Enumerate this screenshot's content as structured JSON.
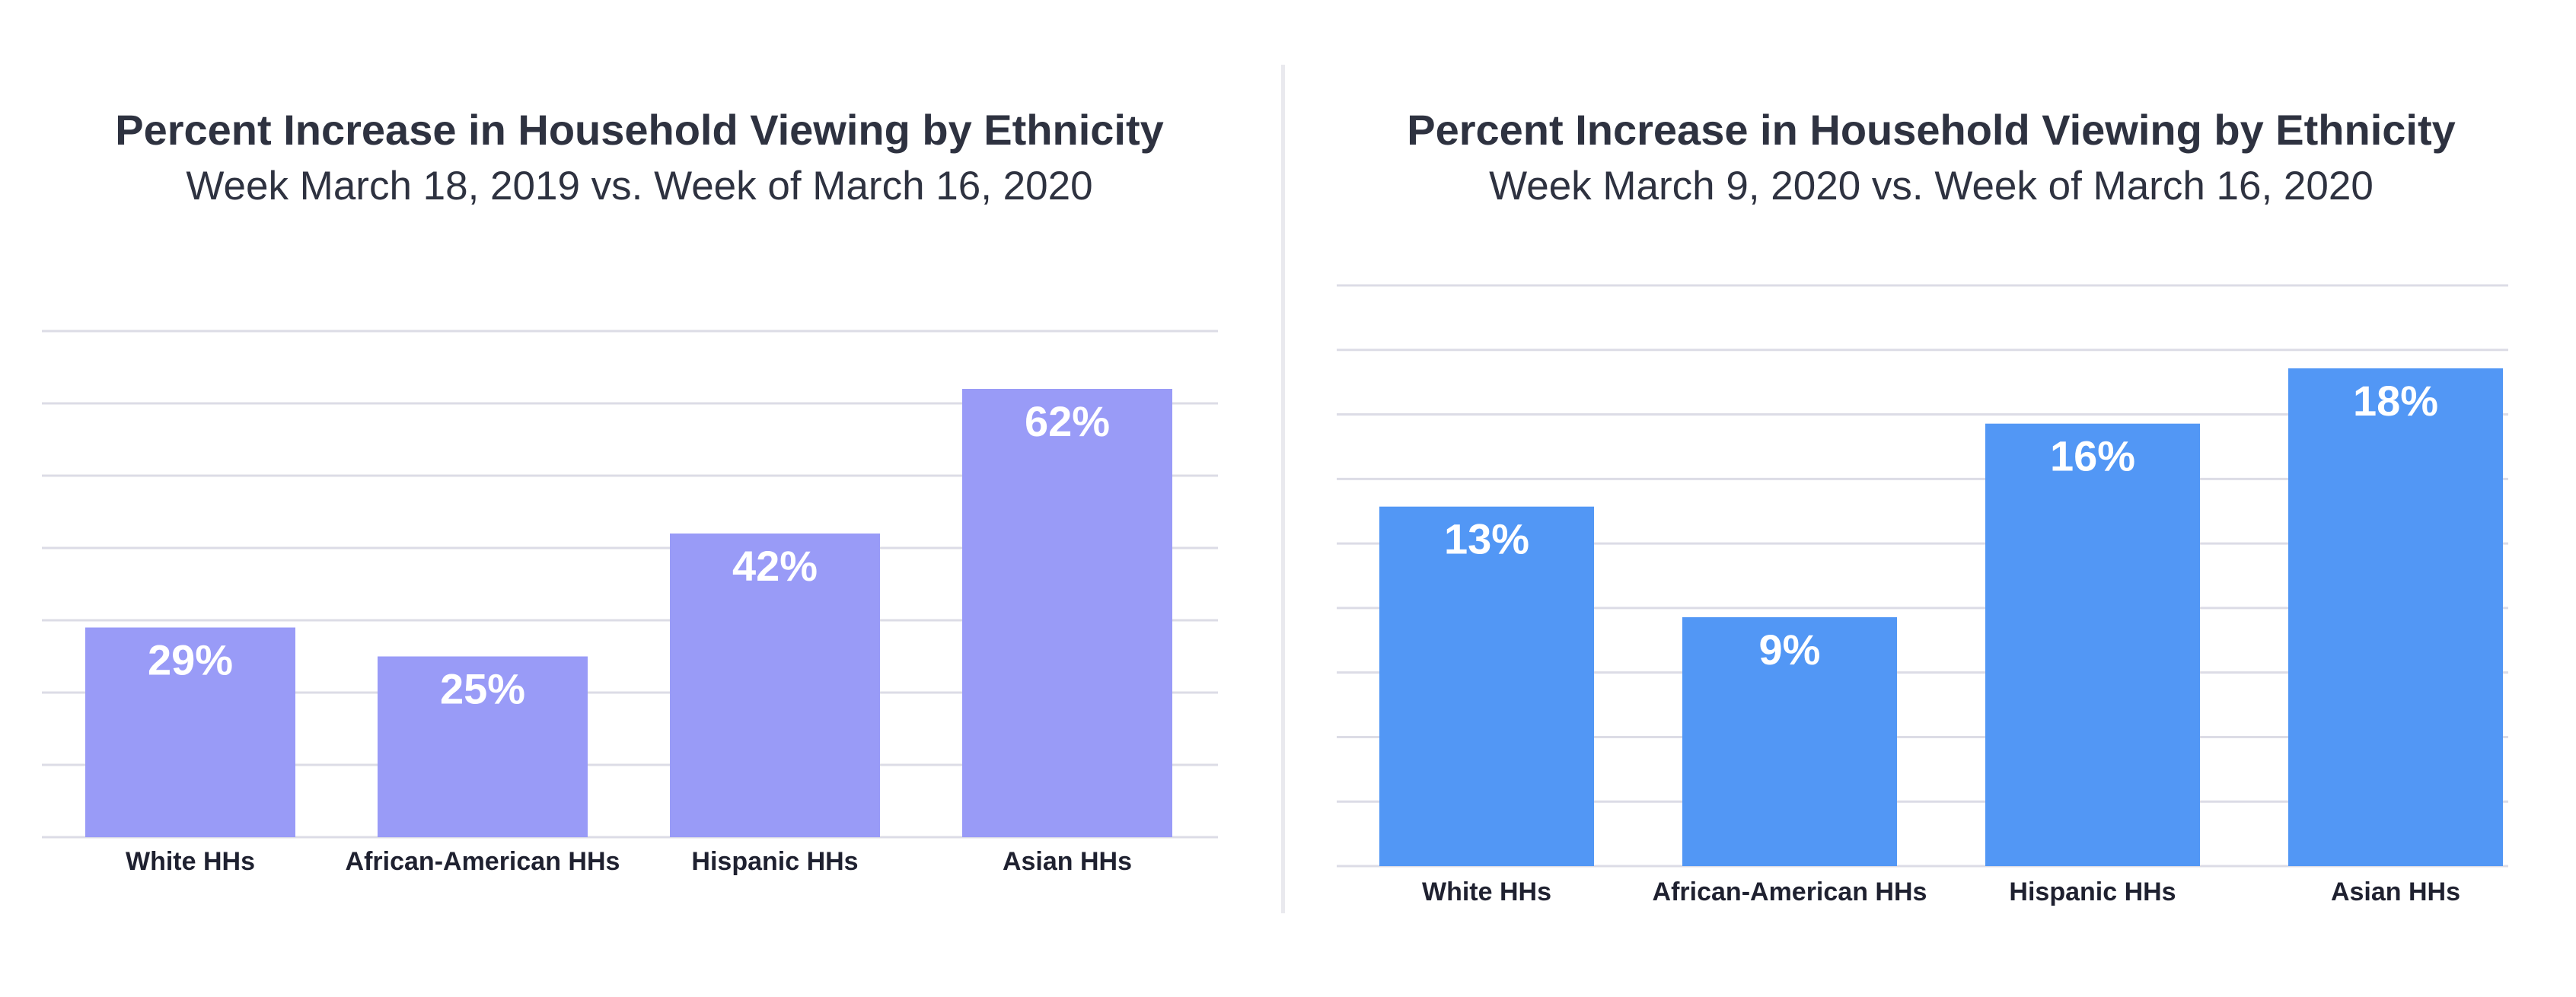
{
  "chart_data": [
    {
      "type": "bar",
      "title": "Percent Increase in Household Viewing by Ethnicity",
      "subtitle": "Week March 18, 2019 vs. Week of March 16, 2020",
      "categories": [
        "White  HHs",
        "African-American HHs",
        "Hispanic HHs",
        "Asian HHs"
      ],
      "values": [
        29,
        25,
        42,
        62
      ],
      "data_labels": [
        "29%",
        "25%",
        "42%",
        "62%"
      ],
      "unit": "%",
      "ylim": [
        0,
        70
      ],
      "grid": true,
      "bar_color": "#999bf7",
      "xlabel": "",
      "ylabel": ""
    },
    {
      "type": "bar",
      "title": "Percent Increase in Household Viewing by Ethnicity",
      "subtitle": "Week March 9, 2020 vs. Week of March 16, 2020",
      "categories": [
        "White  HHs",
        "African-American HHs",
        "Hispanic HHs",
        "Asian HHs"
      ],
      "values": [
        13,
        9,
        16,
        18
      ],
      "data_labels": [
        "13%",
        "9%",
        "16%",
        "18%"
      ],
      "unit": "%",
      "ylim": [
        0,
        21
      ],
      "grid": true,
      "bar_color": "#5297f5",
      "xlabel": "",
      "ylabel": ""
    }
  ]
}
